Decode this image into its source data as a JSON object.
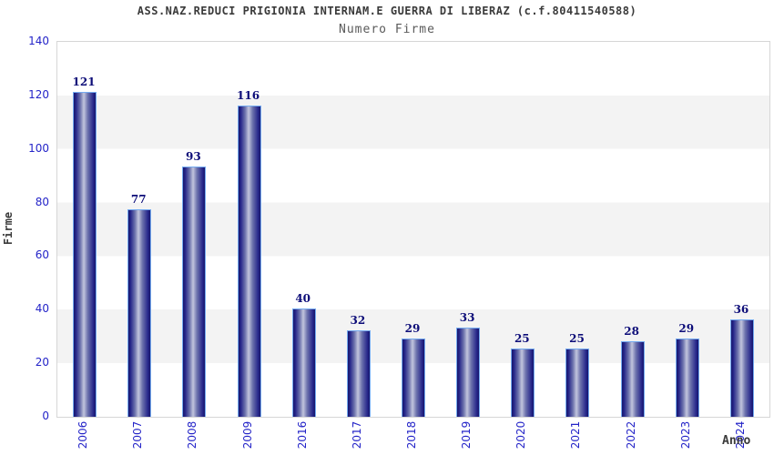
{
  "header": {
    "title": "ASS.NAZ.REDUCI PRIGIONIA INTERNAM.E GUERRA DI LIBERAZ (c.f.80411540588)",
    "subtitle": "Numero Firme"
  },
  "chart_data": {
    "type": "bar",
    "title": "Numero Firme",
    "categories": [
      "2006",
      "2007",
      "2008",
      "2009",
      "2016",
      "2017",
      "2018",
      "2019",
      "2020",
      "2021",
      "2022",
      "2023",
      "2024"
    ],
    "values": [
      121,
      77,
      93,
      116,
      40,
      32,
      29,
      33,
      25,
      25,
      28,
      29,
      36
    ],
    "xlabel": "Anno",
    "ylabel": "Firme",
    "ylim": [
      0,
      140
    ],
    "ytick_step": 20,
    "grid": "alternating horizontal bands",
    "legend_position": "none",
    "colors": {
      "bar_dark": "#17176b",
      "bar_light": "#c2c5dd",
      "bar_border": "#74aaf0",
      "tick_label": "#2424c8",
      "value_label": "#0c0c78",
      "band_gray": "#f3f3f3",
      "plot_border": "#d6d6d6",
      "title_text": "#3a3a3a",
      "subtitle_text": "#5a5a5a"
    }
  }
}
